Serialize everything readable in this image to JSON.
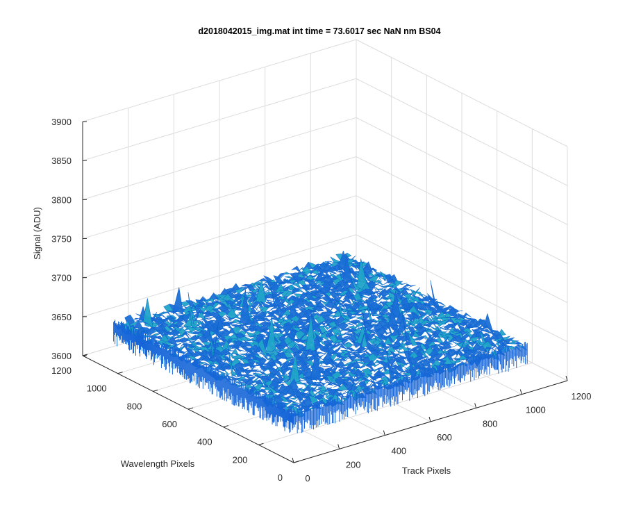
{
  "chart_data": {
    "type": "surface",
    "title": "d2018042015_img.mat int time = 73.6017 sec   NaN nm BS04",
    "xlabel": "Track Pixels",
    "ylabel": "Wavelength Pixels",
    "zlabel": "Signal (ADU)",
    "xlim": [
      0,
      1200
    ],
    "ylim": [
      0,
      1200
    ],
    "zlim": [
      3600,
      3900
    ],
    "x_ticks": [
      "0",
      "200",
      "400",
      "600",
      "800",
      "1000",
      "1200"
    ],
    "y_ticks": [
      "0",
      "200",
      "400",
      "600",
      "800",
      "1000",
      "1200"
    ],
    "z_ticks": [
      "3600",
      "3650",
      "3700",
      "3750",
      "3800",
      "3850",
      "3900"
    ],
    "x_extent": [
      0,
      1024
    ],
    "y_extent": [
      0,
      1024
    ],
    "mean_signal": 3660,
    "noise_range": [
      3640,
      3705
    ],
    "grid": true,
    "colormap_color": "#1a6fd6",
    "colormap_accent": "#20a4c8"
  }
}
